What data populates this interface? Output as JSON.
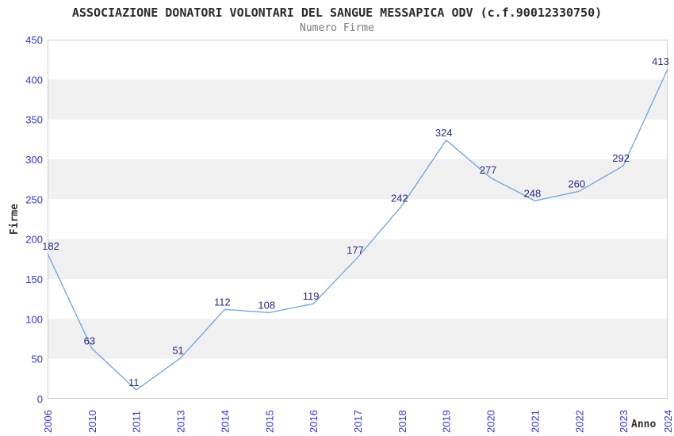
{
  "chart_data": {
    "type": "line",
    "title": "ASSOCIAZIONE DONATORI VOLONTARI DEL SANGUE MESSAPICA ODV (c.f.90012330750)",
    "subtitle": "Numero Firme",
    "xlabel": "Anno",
    "ylabel": "Firme",
    "categories": [
      "2006",
      "2010",
      "2011",
      "2013",
      "2014",
      "2015",
      "2016",
      "2017",
      "2018",
      "2019",
      "2020",
      "2021",
      "2022",
      "2023",
      "2024"
    ],
    "values": [
      182,
      63,
      11,
      51,
      112,
      108,
      119,
      177,
      242,
      324,
      277,
      248,
      260,
      292,
      413
    ],
    "ylim": [
      0,
      450
    ],
    "ytick_step": 50,
    "grid": "alternating-horizontal-bands",
    "legend_position": "none",
    "markers": "none",
    "colors": {
      "background": "#ffffff",
      "band": "#f0f0f0",
      "border": "#cccccc",
      "line": "#75a8df",
      "tick_label": "#3333cc",
      "data_label": "#29297f",
      "title": "#2b2b2b",
      "subtitle": "#7a7a7a",
      "axis_label": "#333333"
    }
  }
}
